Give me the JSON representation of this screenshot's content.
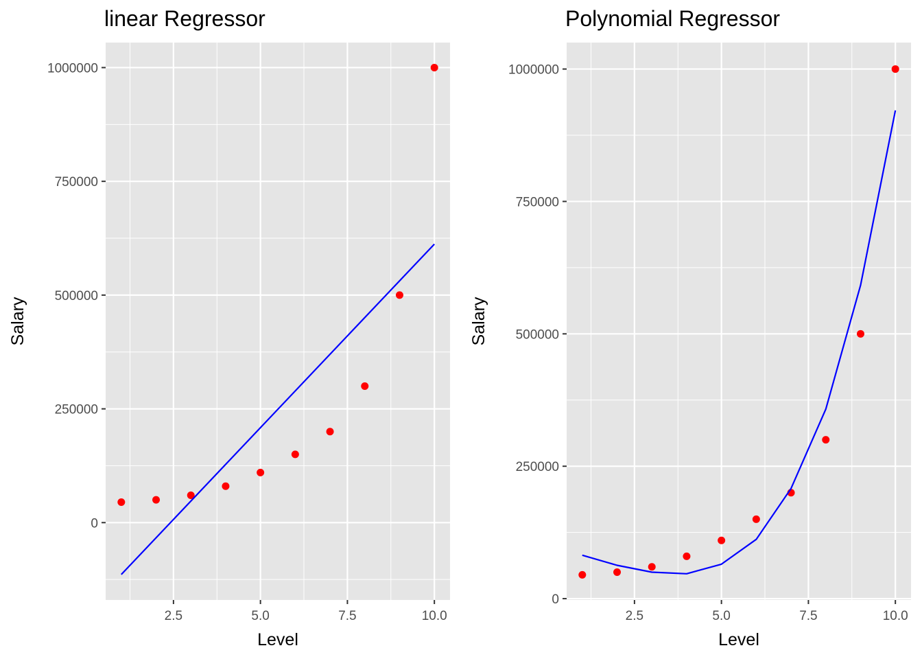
{
  "chart_data": [
    {
      "type": "scatter",
      "title": "linear Regressor",
      "xlabel": "Level",
      "ylabel": "Salary",
      "xlim": [
        0.55,
        10.45
      ],
      "ylim": [
        -170000,
        1055000
      ],
      "x_ticks": [
        2.5,
        5.0,
        7.5,
        10.0
      ],
      "x_tick_labels": [
        "2.5",
        "5.0",
        "7.5",
        "10.0"
      ],
      "y_ticks": [
        0,
        250000,
        500000,
        750000,
        1000000
      ],
      "y_tick_labels": [
        "0",
        "250000",
        "500000",
        "750000",
        "1000000"
      ],
      "grid": true,
      "colors": {
        "points": "#ff0000",
        "line": "#0000ff",
        "panel": "#e5e5e5",
        "grid": "#ffffff"
      },
      "series": [
        {
          "kind": "points",
          "x": [
            1,
            2,
            3,
            4,
            5,
            6,
            7,
            8,
            9,
            10
          ],
          "y": [
            45000,
            50000,
            60000,
            80000,
            110000,
            150000,
            200000,
            300000,
            500000,
            1000000
          ]
        },
        {
          "kind": "line",
          "x": [
            1,
            10
          ],
          "y": [
            -114000,
            612000
          ]
        }
      ]
    },
    {
      "type": "scatter",
      "title": "Polynomial Regressor",
      "xlabel": "Level",
      "ylabel": "Salary",
      "xlim": [
        0.55,
        10.45
      ],
      "ylim": [
        -2500,
        1050000
      ],
      "x_ticks": [
        2.5,
        5.0,
        7.5,
        10.0
      ],
      "x_tick_labels": [
        "2.5",
        "5.0",
        "7.5",
        "10.0"
      ],
      "y_ticks": [
        0,
        250000,
        500000,
        750000,
        1000000
      ],
      "y_tick_labels": [
        "0",
        "250000",
        "500000",
        "750000",
        "1000000"
      ],
      "grid": true,
      "colors": {
        "points": "#ff0000",
        "line": "#0000ff",
        "panel": "#e5e5e5",
        "grid": "#ffffff"
      },
      "series": [
        {
          "kind": "points",
          "x": [
            1,
            2,
            3,
            4,
            5,
            6,
            7,
            8,
            9,
            10
          ],
          "y": [
            45000,
            50000,
            60000,
            80000,
            110000,
            150000,
            200000,
            300000,
            500000,
            1000000
          ]
        },
        {
          "kind": "line",
          "x": [
            1,
            2,
            3,
            4,
            5,
            6,
            7,
            8,
            9,
            10
          ],
          "y": [
            82000,
            63000,
            50000,
            47000,
            65000,
            112000,
            208000,
            358000,
            592000,
            922000
          ]
        }
      ]
    }
  ]
}
